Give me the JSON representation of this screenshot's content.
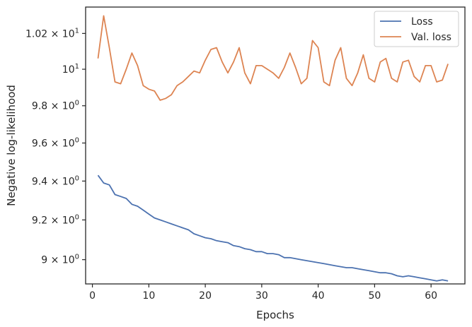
{
  "chart_data": {
    "type": "line",
    "xlabel": "Epochs",
    "ylabel": "Negative log-likelihood",
    "yscale": "log",
    "xlim": [
      -1.2,
      66
    ],
    "ylim": [
      8.88,
      10.35
    ],
    "grid": false,
    "legend_position": "top-right",
    "x_ticks": [
      {
        "value": 0,
        "label": "0"
      },
      {
        "value": 10,
        "label": "10"
      },
      {
        "value": 20,
        "label": "20"
      },
      {
        "value": 30,
        "label": "30"
      },
      {
        "value": 40,
        "label": "40"
      },
      {
        "value": 50,
        "label": "50"
      },
      {
        "value": 60,
        "label": "60"
      }
    ],
    "y_ticks": [
      {
        "value": 9.0,
        "mantissa": "9",
        "exponent": "0"
      },
      {
        "value": 9.2,
        "mantissa": "9.2",
        "exponent": "0"
      },
      {
        "value": 9.4,
        "mantissa": "9.4",
        "exponent": "0"
      },
      {
        "value": 9.6,
        "mantissa": "9.6",
        "exponent": "0"
      },
      {
        "value": 9.8,
        "mantissa": "9.8",
        "exponent": "0"
      },
      {
        "value": 10.0,
        "mantissa": "10",
        "exponent": "1",
        "plain": true
      },
      {
        "value": 10.2,
        "mantissa": "1.02",
        "exponent": "1"
      }
    ],
    "x": [
      1,
      2,
      3,
      4,
      5,
      6,
      7,
      8,
      9,
      10,
      11,
      12,
      13,
      14,
      15,
      16,
      17,
      18,
      19,
      20,
      21,
      22,
      23,
      24,
      25,
      26,
      27,
      28,
      29,
      30,
      31,
      32,
      33,
      34,
      35,
      36,
      37,
      38,
      39,
      40,
      41,
      42,
      43,
      44,
      45,
      46,
      47,
      48,
      49,
      50,
      51,
      52,
      53,
      54,
      55,
      56,
      57,
      58,
      59,
      60,
      61,
      62,
      63
    ],
    "series": [
      {
        "name": "Loss",
        "color": "#4c72b0",
        "values": [
          9.43,
          9.39,
          9.38,
          9.33,
          9.32,
          9.31,
          9.28,
          9.27,
          9.25,
          9.23,
          9.21,
          9.2,
          9.19,
          9.18,
          9.17,
          9.16,
          9.15,
          9.13,
          9.12,
          9.11,
          9.105,
          9.095,
          9.09,
          9.085,
          9.07,
          9.065,
          9.055,
          9.05,
          9.04,
          9.04,
          9.03,
          9.03,
          9.025,
          9.01,
          9.01,
          9.005,
          9.0,
          8.995,
          8.99,
          8.985,
          8.98,
          8.975,
          8.97,
          8.965,
          8.96,
          8.96,
          8.955,
          8.95,
          8.945,
          8.94,
          8.935,
          8.935,
          8.93,
          8.92,
          8.915,
          8.92,
          8.915,
          8.91,
          8.905,
          8.9,
          8.895,
          8.9,
          8.895
        ]
      },
      {
        "name": "Val. loss",
        "color": "#dd8452",
        "values": [
          10.06,
          10.3,
          10.12,
          9.93,
          9.92,
          10.0,
          10.09,
          10.02,
          9.91,
          9.89,
          9.88,
          9.83,
          9.84,
          9.86,
          9.91,
          9.93,
          9.96,
          9.99,
          9.98,
          10.05,
          10.11,
          10.12,
          10.04,
          9.98,
          10.04,
          10.12,
          9.98,
          9.92,
          10.02,
          10.02,
          10.0,
          9.98,
          9.95,
          10.01,
          10.09,
          10.01,
          9.92,
          9.95,
          10.16,
          10.12,
          9.93,
          9.91,
          10.05,
          10.12,
          9.95,
          9.91,
          9.98,
          10.08,
          9.95,
          9.93,
          10.04,
          10.06,
          9.95,
          9.93,
          10.04,
          10.05,
          9.96,
          9.93,
          10.02,
          10.02,
          9.93,
          9.94,
          10.03
        ]
      }
    ]
  }
}
